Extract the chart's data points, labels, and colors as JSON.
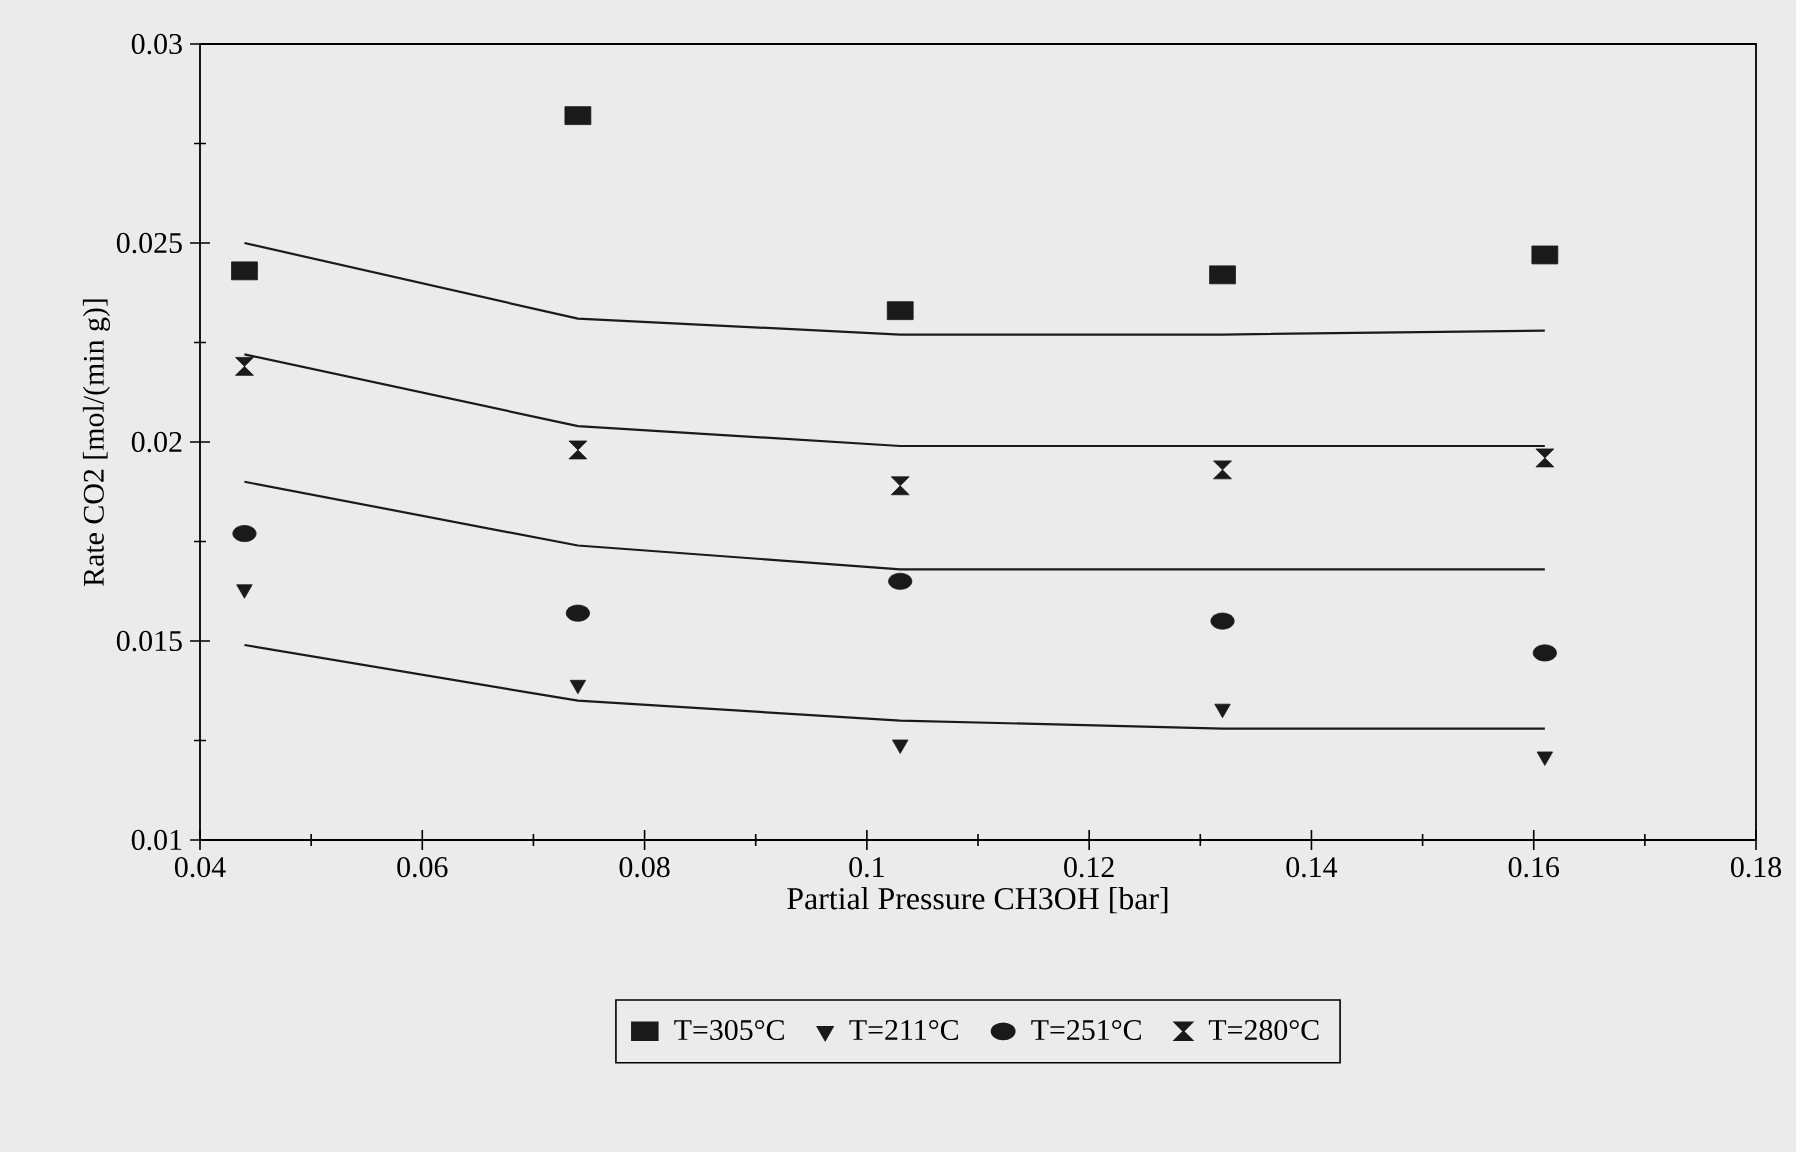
{
  "chart_data": {
    "type": "scatter",
    "xlabel": "Partial Pressure CH3OH [bar]",
    "ylabel": "Rate CO2 [mol/(min g)]",
    "xlim": [
      0.04,
      0.18
    ],
    "ylim": [
      0.01,
      0.03
    ],
    "xticks": [
      0.04,
      0.06,
      0.08,
      0.1,
      0.12,
      0.14,
      0.16,
      0.18
    ],
    "yticks": [
      0.01,
      0.015,
      0.02,
      0.025,
      0.03
    ],
    "grid": false,
    "legend": "bottom",
    "x": [
      0.044,
      0.074,
      0.103,
      0.132,
      0.161
    ],
    "series": [
      {
        "name": "T=305°C",
        "marker": "square",
        "color": "#1a1a1a",
        "values": [
          0.0243,
          0.0282,
          0.0233,
          0.0242,
          0.0247
        ]
      },
      {
        "name": "T=211°C",
        "marker": "triangle",
        "color": "#1a1a1a",
        "values": [
          0.0163,
          0.0139,
          0.0124,
          0.0133,
          0.0121
        ]
      },
      {
        "name": "T=251°C",
        "marker": "circle",
        "color": "#1a1a1a",
        "values": [
          0.0177,
          0.0157,
          0.0165,
          0.0155,
          0.0147
        ]
      },
      {
        "name": "T=280°C",
        "marker": "diamond",
        "color": "#1a1a1a",
        "values": [
          0.0219,
          0.0198,
          0.0189,
          0.0193,
          0.0196
        ]
      },
      {
        "type": "line",
        "marker": "none",
        "color": "#1a1a1a",
        "values": [
          0.025,
          0.0231,
          0.0227,
          0.0227,
          0.0228
        ]
      },
      {
        "type": "line",
        "marker": "none",
        "color": "#1a1a1a",
        "values": [
          0.0222,
          0.0204,
          0.0199,
          0.0199,
          0.0199
        ]
      },
      {
        "type": "line",
        "marker": "none",
        "color": "#1a1a1a",
        "values": [
          0.019,
          0.0174,
          0.0168,
          0.0168,
          0.0168
        ]
      },
      {
        "type": "line",
        "marker": "none",
        "color": "#1a1a1a",
        "values": [
          0.0149,
          0.0135,
          0.013,
          0.0128,
          0.0128
        ]
      }
    ]
  }
}
